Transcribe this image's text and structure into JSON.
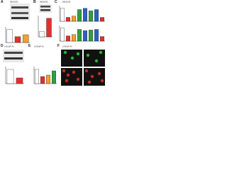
{
  "panels": [
    {
      "letter": "A",
      "label": "MDA231",
      "charts": [
        {
          "values": [
            1.0,
            0.45,
            0.6
          ],
          "colors": [
            "#ffffff",
            "#e03030",
            "#f0a030"
          ],
          "ylim": [
            0,
            1.2
          ]
        }
      ]
    },
    {
      "letter": "B",
      "label": "MDA231",
      "charts": [
        {
          "values": [
            1.0,
            3.5
          ],
          "colors": [
            "#ffffff",
            "#e03030"
          ],
          "ylim": [
            0,
            4
          ]
        }
      ]
    },
    {
      "letter": "C",
      "label": "MDA231",
      "charts": [
        {
          "values": [
            1.0,
            0.3,
            0.4,
            0.9,
            1.0,
            0.8,
            0.9,
            0.3
          ],
          "colors": [
            "#ffffff",
            "#e03030",
            "#f0a030",
            "#30a040",
            "#3060c0",
            "#30a040",
            "#3060c0",
            "#e03030"
          ],
          "ylim": [
            0,
            1.2
          ]
        },
        {
          "values": [
            1.0,
            0.4,
            0.5,
            0.9,
            0.8,
            0.85,
            0.9,
            0.35
          ],
          "colors": [
            "#ffffff",
            "#e03030",
            "#f0a030",
            "#30a040",
            "#3060c0",
            "#30a040",
            "#3060c0",
            "#e03030"
          ],
          "ylim": [
            0,
            1.2
          ]
        }
      ]
    },
    {
      "letter": "D",
      "label": "LNCaP-AI",
      "charts": [
        {
          "values": [
            1.0,
            0.4
          ],
          "colors": [
            "#ffffff",
            "#e03030"
          ],
          "ylim": [
            0,
            1.2
          ]
        }
      ]
    },
    {
      "letter": "E",
      "label": "LNCaP-AI",
      "charts": [
        {
          "values": [
            1.0,
            0.5,
            0.6,
            0.9
          ],
          "colors": [
            "#ffffff",
            "#e03030",
            "#f0a030",
            "#30a040"
          ],
          "ylim": [
            0,
            1.2
          ]
        }
      ]
    },
    {
      "letter": "F",
      "label": "LNCaP-AI",
      "charts": []
    }
  ]
}
